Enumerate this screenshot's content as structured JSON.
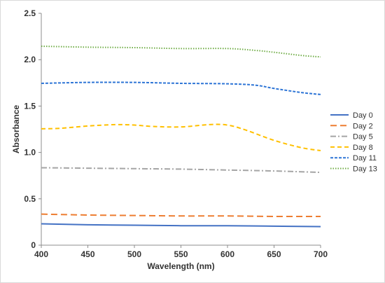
{
  "chart_data": {
    "type": "line",
    "title": "",
    "xlabel": "Wavelength (nm)",
    "ylabel": "Absorbance",
    "xlim": [
      400,
      700
    ],
    "ylim": [
      0,
      2.5
    ],
    "xticks": [
      400,
      450,
      500,
      550,
      600,
      650,
      700
    ],
    "yticks": [
      0,
      0.5,
      1.0,
      1.5,
      2.0,
      2.5
    ],
    "ytick_labels": [
      "0",
      "0.5",
      "1.0",
      "1.5",
      "2.0",
      "2.5"
    ],
    "grid": false,
    "legend_position": "right",
    "series": [
      {
        "name": "Day 0",
        "color": "#4472c4",
        "dash": "solid",
        "x": [
          400,
          450,
          500,
          550,
          600,
          650,
          700
        ],
        "y": [
          0.23,
          0.22,
          0.215,
          0.21,
          0.21,
          0.205,
          0.2
        ]
      },
      {
        "name": "Day 2",
        "color": "#ed7d31",
        "dash": "long-dash",
        "x": [
          400,
          450,
          500,
          550,
          600,
          650,
          700
        ],
        "y": [
          0.335,
          0.325,
          0.32,
          0.315,
          0.315,
          0.31,
          0.31
        ]
      },
      {
        "name": "Day 5",
        "color": "#a5a5a5",
        "dash": "dash-dot",
        "x": [
          400,
          450,
          500,
          550,
          600,
          650,
          700
        ],
        "y": [
          0.835,
          0.83,
          0.825,
          0.82,
          0.81,
          0.8,
          0.785
        ]
      },
      {
        "name": "Day 8",
        "color": "#ffc000",
        "dash": "dash",
        "x": [
          400,
          420,
          450,
          480,
          500,
          520,
          550,
          580,
          600,
          620,
          650,
          680,
          700
        ],
        "y": [
          1.255,
          1.26,
          1.285,
          1.3,
          1.295,
          1.28,
          1.275,
          1.3,
          1.295,
          1.24,
          1.13,
          1.05,
          1.02
        ]
      },
      {
        "name": "Day 11",
        "color": "#2e75d6",
        "dash": "short-dash",
        "x": [
          400,
          450,
          500,
          550,
          600,
          630,
          650,
          680,
          700
        ],
        "y": [
          1.745,
          1.755,
          1.755,
          1.745,
          1.74,
          1.725,
          1.69,
          1.645,
          1.625
        ]
      },
      {
        "name": "Day 13",
        "color": "#70ad47",
        "dash": "dot",
        "x": [
          400,
          450,
          500,
          550,
          600,
          630,
          650,
          680,
          700
        ],
        "y": [
          2.145,
          2.135,
          2.13,
          2.12,
          2.12,
          2.1,
          2.08,
          2.045,
          2.03
        ]
      }
    ]
  }
}
